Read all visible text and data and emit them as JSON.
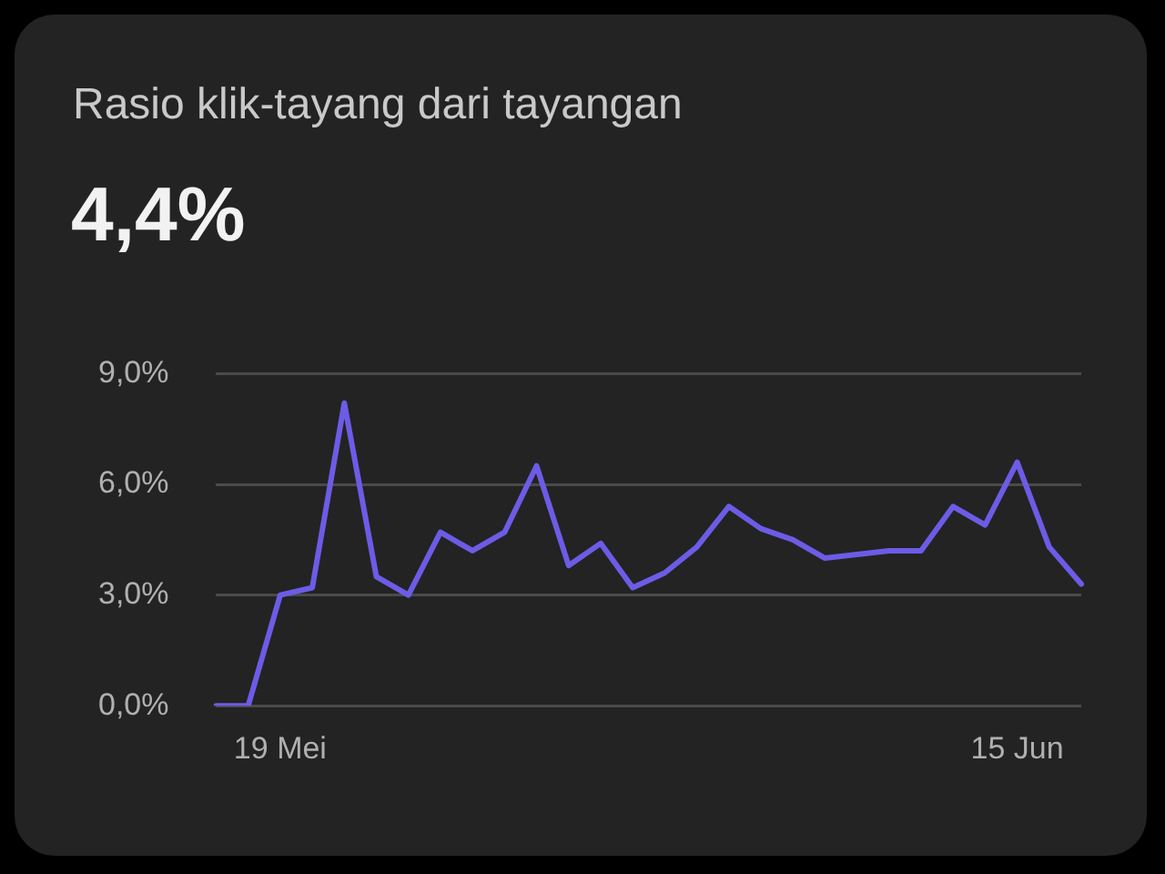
{
  "chart_data": {
    "type": "line",
    "title": "Rasio klik-tayang dari tayangan",
    "subtitle": "4,4%",
    "categories": [
      null,
      null,
      "19 Mei",
      null,
      null,
      null,
      null,
      null,
      null,
      null,
      null,
      null,
      null,
      null,
      null,
      null,
      null,
      null,
      null,
      null,
      null,
      null,
      null,
      null,
      null,
      "15 Jun",
      null,
      null
    ],
    "series": [
      {
        "color": "#6c5ce6",
        "values": [
          0,
          0,
          3.0,
          3.2,
          8.2,
          3.5,
          3.0,
          4.7,
          4.2,
          4.7,
          6.5,
          3.8,
          4.4,
          3.2,
          3.6,
          4.3,
          5.4,
          4.8,
          4.5,
          4.0,
          4.1,
          4.2,
          4.2,
          5.4,
          4.9,
          6.6,
          4.3,
          3.3
        ]
      }
    ],
    "ylim": [
      0,
      9
    ],
    "yticks": [
      {
        "value": 0,
        "label": "0,0%"
      },
      {
        "value": 3,
        "label": "3,0%"
      },
      {
        "value": 6,
        "label": "6,0%"
      },
      {
        "value": 9,
        "label": "9,0%"
      }
    ],
    "grid": "y",
    "legend": false,
    "marker": "none",
    "line_style": "solid"
  }
}
